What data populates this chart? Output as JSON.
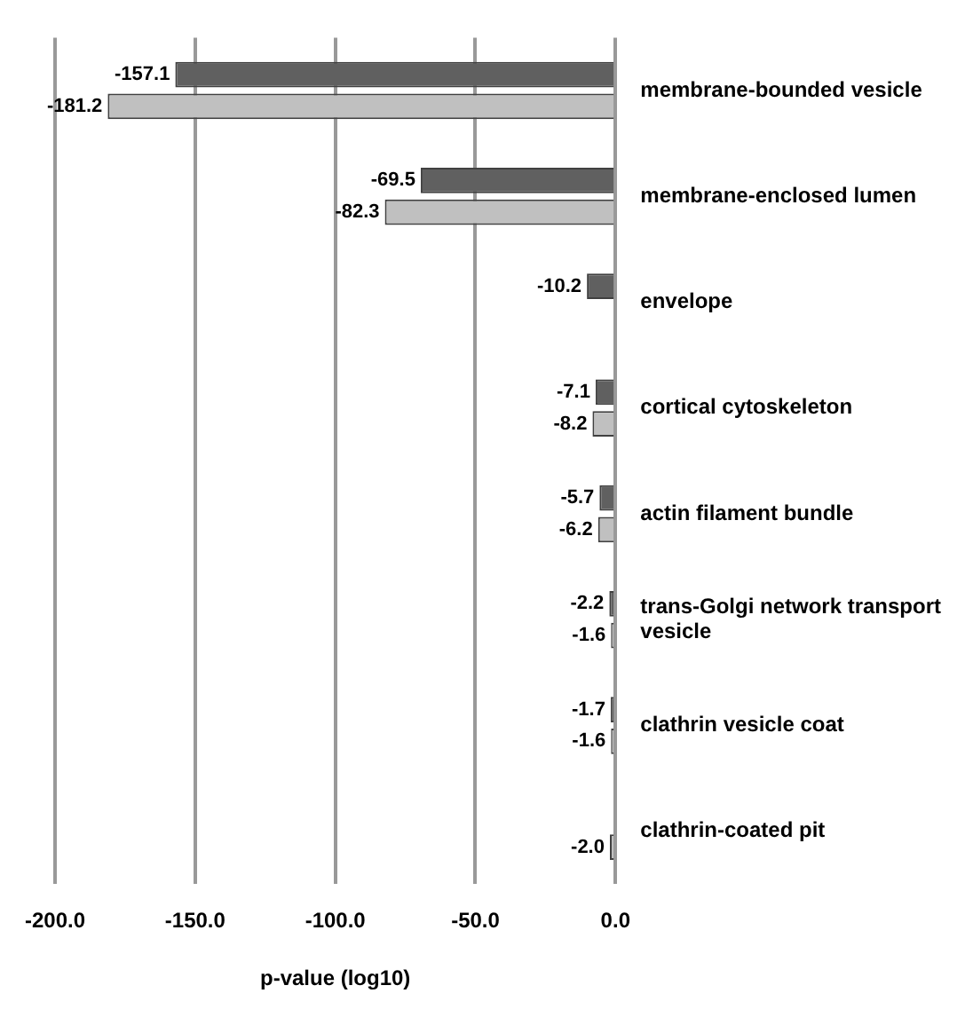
{
  "chart_data": {
    "type": "bar",
    "orientation": "horizontal",
    "xlabel": "p-value (log10)",
    "categories": [
      "membrane-bounded vesicle",
      "membrane-enclosed lumen",
      "envelope",
      "cortical cytoskeleton",
      "actin filament bundle",
      "trans-Golgi network transport vesicle",
      "clathrin vesicle coat",
      "clathrin-coated pit"
    ],
    "series": [
      {
        "color": "#606060",
        "values": [
          -157.1,
          -69.5,
          -10.2,
          -7.1,
          -5.7,
          -2.2,
          -1.7,
          null
        ],
        "value_labels": [
          "-157.1",
          "-69.5",
          "-10.2",
          "-7.1",
          "-5.7",
          "-2.2",
          "-1.7",
          null
        ]
      },
      {
        "color": "#c0c0c0",
        "values": [
          -181.2,
          -82.3,
          null,
          -8.2,
          -6.2,
          -1.6,
          -1.6,
          -2.0
        ],
        "value_labels": [
          "-181.2",
          "-82.3",
          null,
          "-8.2",
          "-6.2",
          "-1.6",
          "-1.6",
          "-2.0"
        ]
      }
    ],
    "xlim": [
      -200,
      0
    ],
    "xticks": [
      {
        "value": -200,
        "label": "-200.0"
      },
      {
        "value": -150,
        "label": "-150.0"
      },
      {
        "value": -100,
        "label": "-100.0"
      },
      {
        "value": -50,
        "label": "-50.0"
      },
      {
        "value": 0,
        "label": "0.0"
      }
    ],
    "grid": "x",
    "legend": false
  }
}
